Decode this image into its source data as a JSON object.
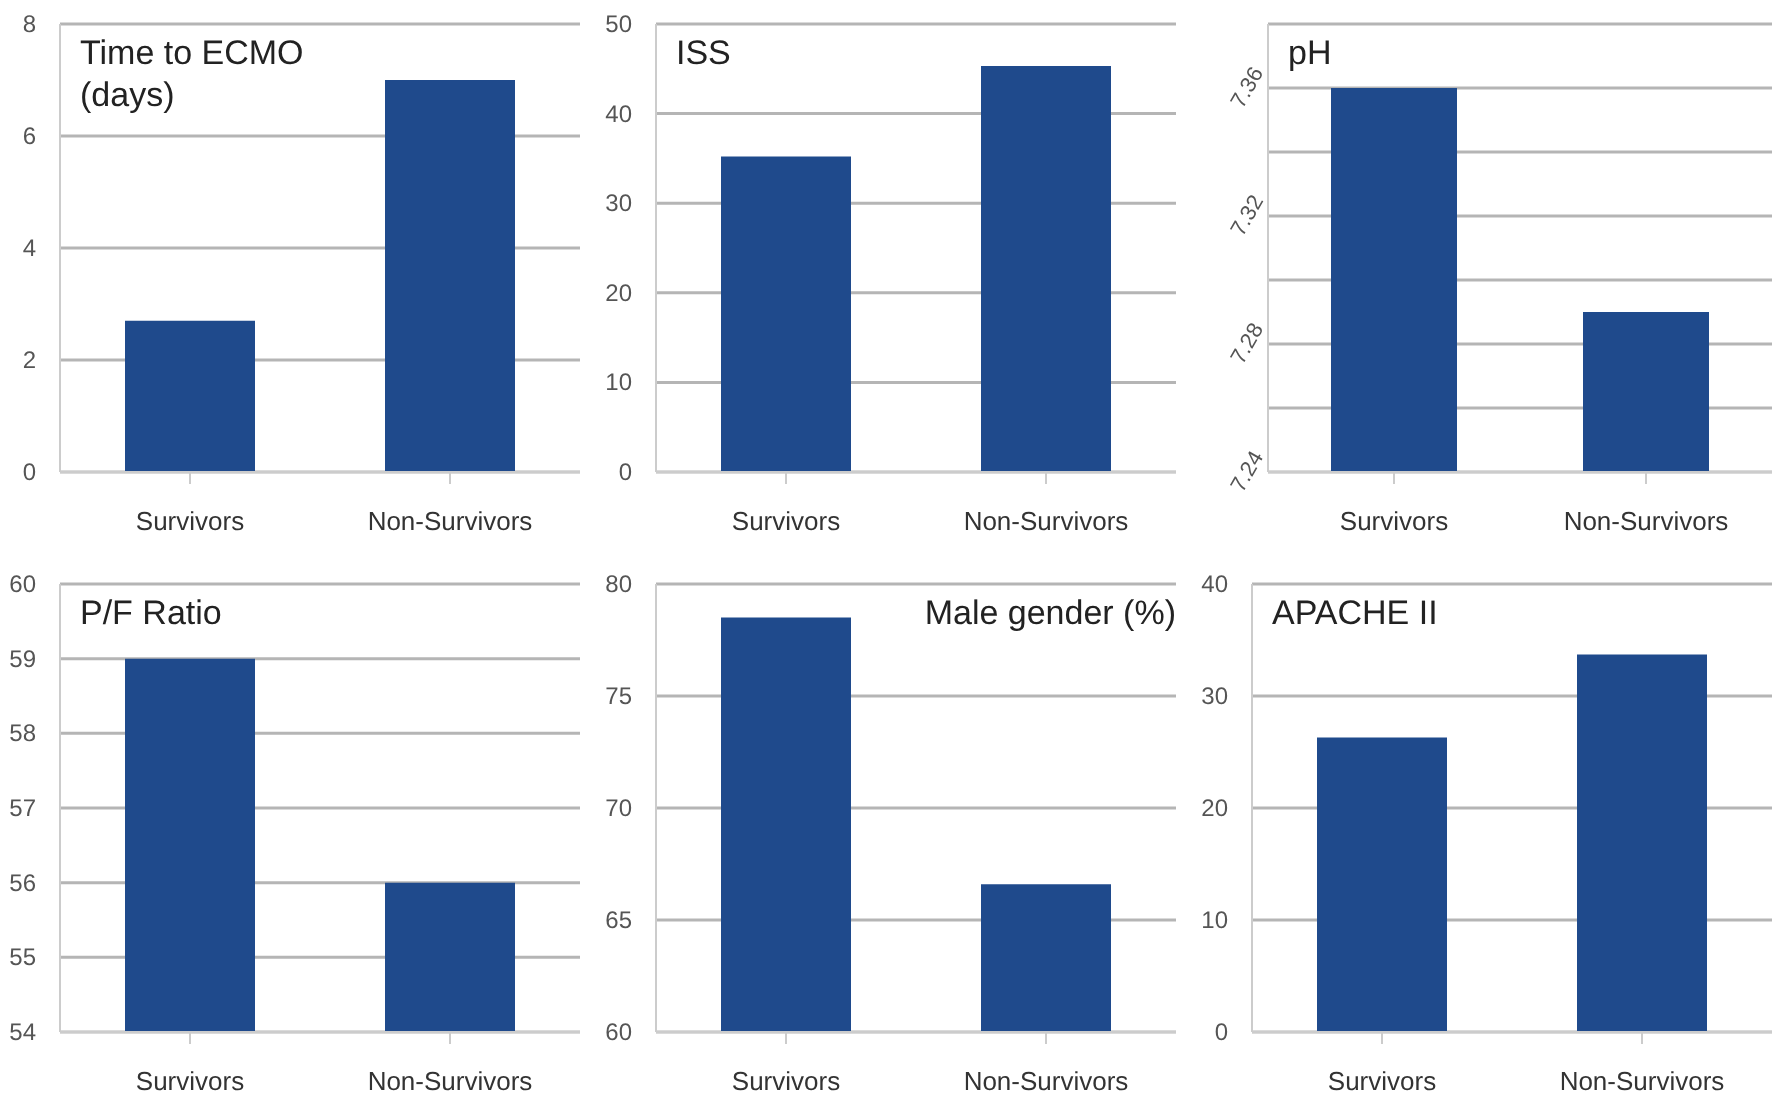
{
  "chart_data": [
    {
      "type": "bar",
      "title": "Time to ECMO (days)",
      "categories": [
        "Survivors",
        "Non-Survivors"
      ],
      "values": [
        2.7,
        7.0
      ],
      "color": "#1f4a8c",
      "ylim": [
        0,
        8
      ],
      "yticks": [
        0,
        2,
        4,
        6,
        8
      ],
      "grid": "y"
    },
    {
      "type": "bar",
      "title": "ISS",
      "categories": [
        "Survivors",
        "Non-Survivors"
      ],
      "values": [
        35.2,
        45.3
      ],
      "color": "#1f4a8c",
      "ylim": [
        0,
        50
      ],
      "yticks": [
        0,
        10,
        20,
        30,
        40,
        50
      ],
      "grid": "y"
    },
    {
      "type": "bar",
      "title": "pH",
      "categories": [
        "Survivors",
        "Non-Survivors"
      ],
      "values": [
        7.36,
        7.29
      ],
      "color": "#1f4a8c",
      "ylim": [
        7.24,
        7.38
      ],
      "yticks": [
        7.24,
        {
          "value": 7.26,
          "label": null
        },
        7.28,
        {
          "value": 7.3,
          "label": null
        },
        7.32,
        {
          "value": 7.34,
          "label": null
        },
        7.36,
        {
          "value": 7.38,
          "label": null
        }
      ],
      "grid": "y"
    },
    {
      "type": "bar",
      "title": "P/F Ratio",
      "categories": [
        "Survivors",
        "Non-Survivors"
      ],
      "values": [
        59.0,
        56.0
      ],
      "color": "#1f4a8c",
      "ylim": [
        54,
        60
      ],
      "yticks": [
        54,
        55,
        56,
        57,
        58,
        59,
        60
      ],
      "grid": "y"
    },
    {
      "type": "bar",
      "title": "Male gender (%)",
      "categories": [
        "Survivors",
        "Non-Survivors"
      ],
      "values": [
        78.5,
        66.6
      ],
      "color": "#1f4a8c",
      "ylim": [
        60,
        80
      ],
      "yticks": [
        60,
        65,
        70,
        75,
        80
      ],
      "grid": "y"
    },
    {
      "type": "bar",
      "title": "APACHE II",
      "categories": [
        "Survivors",
        "Non-Survivors"
      ],
      "values": [
        26.3,
        33.7
      ],
      "color": "#1f4a8c",
      "ylim": [
        0,
        40
      ],
      "yticks": [
        0,
        10,
        20,
        30,
        40
      ],
      "grid": "y"
    }
  ]
}
